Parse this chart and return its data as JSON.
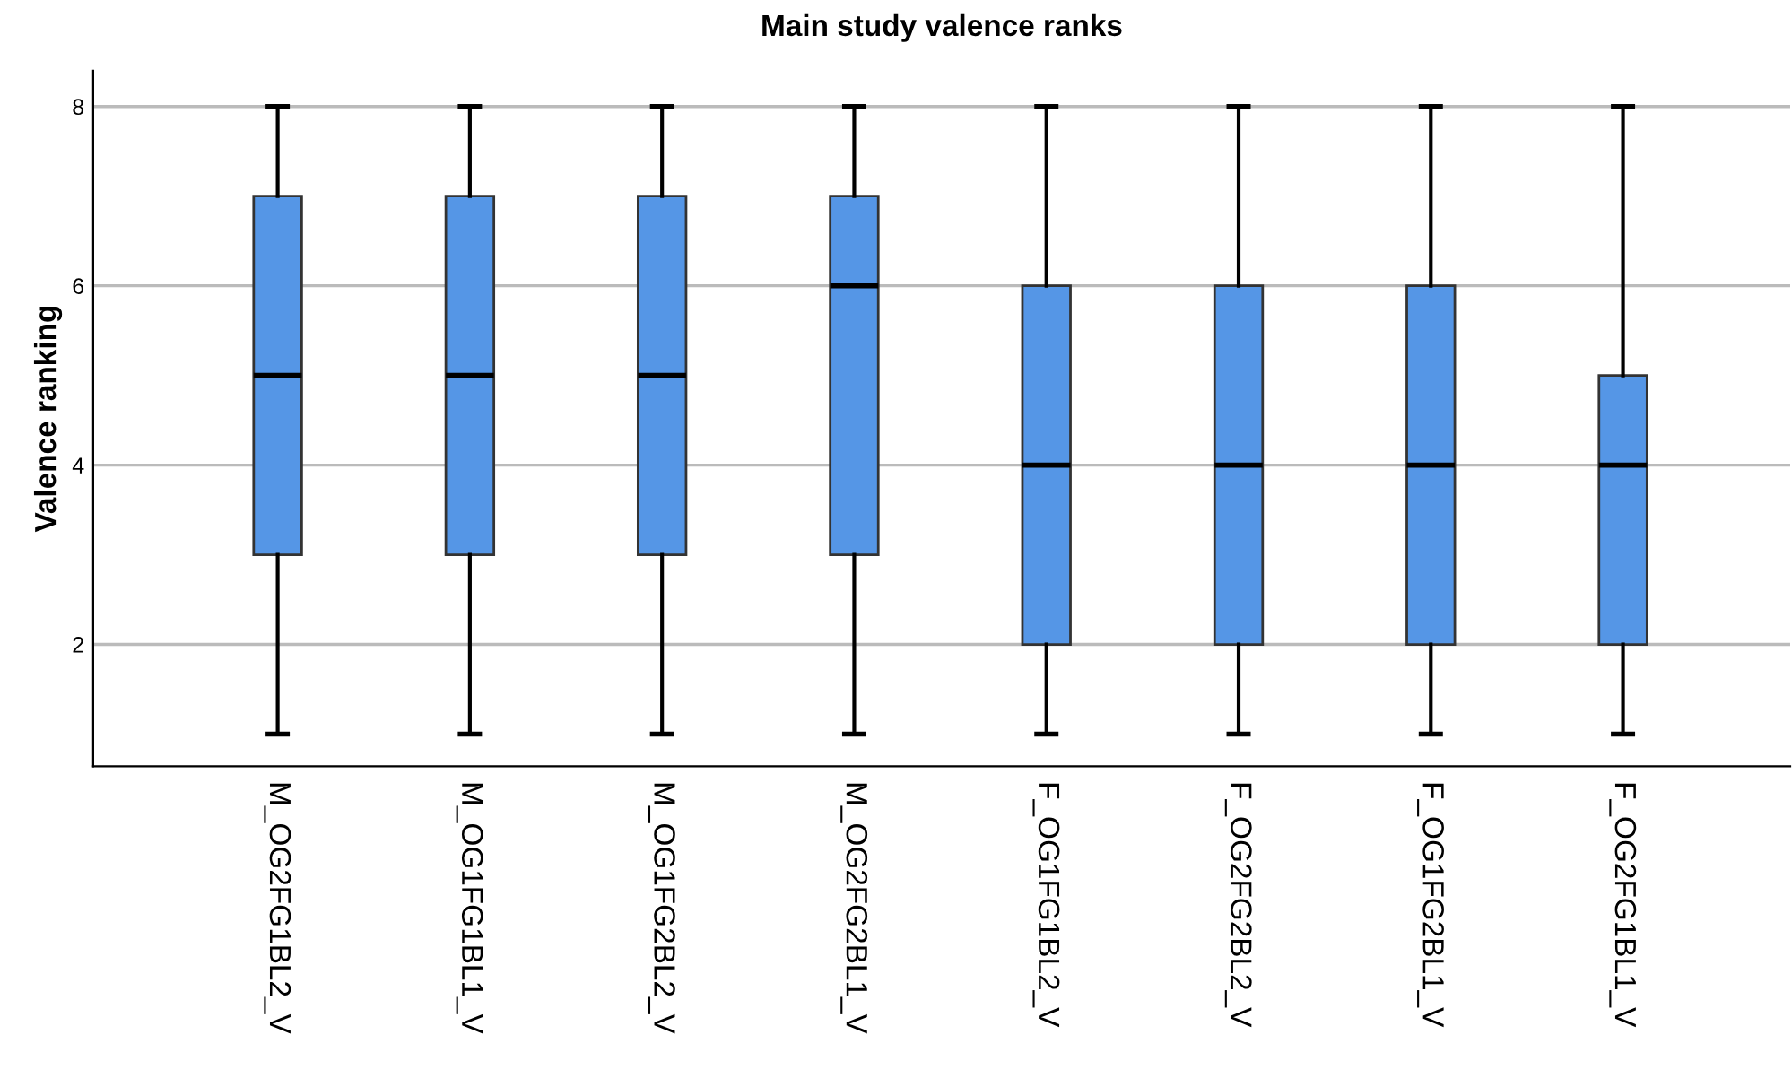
{
  "chart_data": {
    "type": "box",
    "title": "Main study valence ranks",
    "ylabel": "Valence ranking",
    "categories": [
      "M_OG2FG1BL2_V",
      "M_OG1FG1BL1_V",
      "M_OG1FG2BL2_V",
      "M_OG2FG2BL1_V",
      "F_OG1FG1BL2_V",
      "F_OG2FG2BL2_V",
      "F_OG1FG2BL1_V",
      "F_OG2FG1BL1_V"
    ],
    "color": "#5596e6",
    "boxes": [
      {
        "low": 1,
        "q1": 3,
        "median": 5,
        "q3": 7,
        "high": 8
      },
      {
        "low": 1,
        "q1": 3,
        "median": 5,
        "q3": 7,
        "high": 8
      },
      {
        "low": 1,
        "q1": 3,
        "median": 5,
        "q3": 7,
        "high": 8
      },
      {
        "low": 1,
        "q1": 3,
        "median": 6,
        "q3": 7,
        "high": 8
      },
      {
        "low": 1,
        "q1": 2,
        "median": 4,
        "q3": 6,
        "high": 8
      },
      {
        "low": 1,
        "q1": 2,
        "median": 4,
        "q3": 6,
        "high": 8
      },
      {
        "low": 1,
        "q1": 2,
        "median": 4,
        "q3": 6,
        "high": 8
      },
      {
        "low": 1,
        "q1": 2,
        "median": 4,
        "q3": 5,
        "high": 8
      }
    ],
    "ylim": [
      0.64,
      8.4
    ],
    "yticks": [
      2,
      4,
      6,
      8
    ],
    "grid": "y",
    "legend": false
  }
}
